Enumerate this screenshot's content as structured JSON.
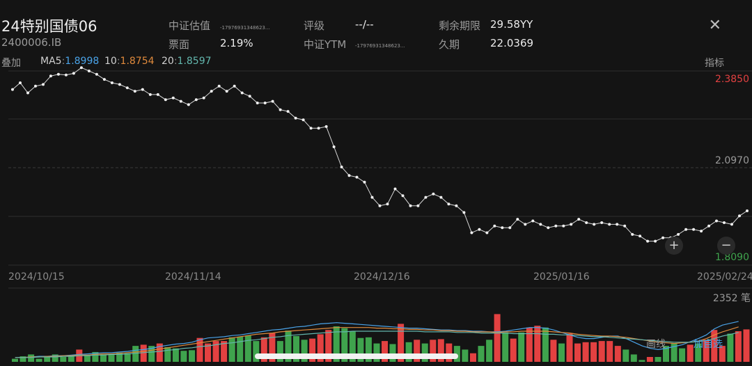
{
  "header": {
    "title": "24特别国债06",
    "code": "2400006.IB",
    "close_icon": "close-icon",
    "fields": [
      {
        "label": "中证估值",
        "value": "-17976931348623...",
        "value_style": "tiny"
      },
      {
        "label": "票面",
        "value": "2.19%"
      },
      {
        "label": "评级",
        "value": "--/--"
      },
      {
        "label": "中证YTM",
        "value": "-17976931348623...",
        "value_style": "tiny"
      },
      {
        "label": "剩余期限",
        "value": "29.58YY"
      },
      {
        "label": "久期",
        "value": "22.0369"
      }
    ]
  },
  "overlay_bar": {
    "overlay_label": "叠加",
    "ma5_label": "MA5",
    "ma5_value": "1.8998",
    "ma10_label": "10",
    "ma10_value": "1.8754",
    "ma20_label": "20",
    "ma20_value": "1.8597",
    "indicator_label": "指标"
  },
  "colors": {
    "ma5": "#4aa3e8",
    "ma10": "#e08a3c",
    "ma20": "#63b7ae",
    "up": "#e34141",
    "down": "#3fa34d",
    "price_line": "#d8d8d8"
  },
  "chart_data": {
    "type": "line",
    "y_labels": {
      "high": "2.3850",
      "mid": "2.0970",
      "low": "1.8090"
    },
    "ylim": [
      1.809,
      2.385
    ],
    "x_tick_labels": [
      "2024/10/15",
      "2024/11/14",
      "2024/12/16",
      "2025/01/16",
      "2025/02/24"
    ],
    "series": [
      {
        "values": [
          2.33,
          2.35,
          2.32,
          2.34,
          2.345,
          2.37,
          2.375,
          2.373,
          2.378,
          2.395,
          2.385,
          2.375,
          2.36,
          2.35,
          2.345,
          2.335,
          2.325,
          2.33,
          2.315,
          2.315,
          2.3,
          2.305,
          2.295,
          2.285,
          2.3,
          2.305,
          2.325,
          2.34,
          2.325,
          2.34,
          2.32,
          2.31,
          2.29,
          2.29,
          2.295,
          2.27,
          2.265,
          2.245,
          2.24,
          2.215,
          2.215,
          2.22,
          2.16,
          2.1,
          2.075,
          2.07,
          2.055,
          2.01,
          1.985,
          1.99,
          2.035,
          2.015,
          1.985,
          1.985,
          2.01,
          2.02,
          2.01,
          1.99,
          1.985,
          1.965,
          1.905,
          1.915,
          1.905,
          1.925,
          1.92,
          1.92,
          1.945,
          1.93,
          1.94,
          1.93,
          1.92,
          1.925,
          1.925,
          1.93,
          1.945,
          1.935,
          1.93,
          1.935,
          1.93,
          1.93,
          1.925,
          1.9,
          1.895,
          1.88,
          1.88,
          1.89,
          1.89,
          1.9,
          1.915,
          1.915,
          1.91,
          1.925,
          1.94,
          1.935,
          1.93,
          1.955,
          1.97
        ]
      }
    ],
    "volume": {
      "max_label": "2352 笔",
      "bars": [
        {
          "v": 0.05,
          "c": "down"
        },
        {
          "v": 0.09,
          "c": "down"
        },
        {
          "v": 0.12,
          "c": "down"
        },
        {
          "v": 0.05,
          "c": "down"
        },
        {
          "v": 0.09,
          "c": "down"
        },
        {
          "v": 0.12,
          "c": "down"
        },
        {
          "v": 0.08,
          "c": "down"
        },
        {
          "v": 0.1,
          "c": "down"
        },
        {
          "v": 0.2,
          "c": "up"
        },
        {
          "v": 0.11,
          "c": "down"
        },
        {
          "v": 0.16,
          "c": "down"
        },
        {
          "v": 0.12,
          "c": "down"
        },
        {
          "v": 0.12,
          "c": "down"
        },
        {
          "v": 0.15,
          "c": "down"
        },
        {
          "v": 0.14,
          "c": "down"
        },
        {
          "v": 0.26,
          "c": "down"
        },
        {
          "v": 0.28,
          "c": "up"
        },
        {
          "v": 0.26,
          "c": "down"
        },
        {
          "v": 0.3,
          "c": "up"
        },
        {
          "v": 0.24,
          "c": "down"
        },
        {
          "v": 0.22,
          "c": "down"
        },
        {
          "v": 0.18,
          "c": "down"
        },
        {
          "v": 0.19,
          "c": "down"
        },
        {
          "v": 0.39,
          "c": "up"
        },
        {
          "v": 0.3,
          "c": "up"
        },
        {
          "v": 0.34,
          "c": "up"
        },
        {
          "v": 0.34,
          "c": "up"
        },
        {
          "v": 0.4,
          "c": "down"
        },
        {
          "v": 0.41,
          "c": "down"
        },
        {
          "v": 0.43,
          "c": "down"
        },
        {
          "v": 0.34,
          "c": "down"
        },
        {
          "v": 0.4,
          "c": "up"
        },
        {
          "v": 0.47,
          "c": "up"
        },
        {
          "v": 0.34,
          "c": "down"
        },
        {
          "v": 0.51,
          "c": "down"
        },
        {
          "v": 0.42,
          "c": "down"
        },
        {
          "v": 0.36,
          "c": "down"
        },
        {
          "v": 0.38,
          "c": "up"
        },
        {
          "v": 0.45,
          "c": "up"
        },
        {
          "v": 0.52,
          "c": "up"
        },
        {
          "v": 0.58,
          "c": "down"
        },
        {
          "v": 0.55,
          "c": "down"
        },
        {
          "v": 0.5,
          "c": "down"
        },
        {
          "v": 0.39,
          "c": "down"
        },
        {
          "v": 0.4,
          "c": "down"
        },
        {
          "v": 0.3,
          "c": "down"
        },
        {
          "v": 0.34,
          "c": "up"
        },
        {
          "v": 0.29,
          "c": "down"
        },
        {
          "v": 0.62,
          "c": "up"
        },
        {
          "v": 0.32,
          "c": "down"
        },
        {
          "v": 0.36,
          "c": "up"
        },
        {
          "v": 0.3,
          "c": "down"
        },
        {
          "v": 0.36,
          "c": "up"
        },
        {
          "v": 0.37,
          "c": "up"
        },
        {
          "v": 0.3,
          "c": "up"
        },
        {
          "v": 0.26,
          "c": "down"
        },
        {
          "v": 0.2,
          "c": "down"
        },
        {
          "v": 0.14,
          "c": "up"
        },
        {
          "v": 0.26,
          "c": "down"
        },
        {
          "v": 0.36,
          "c": "down"
        },
        {
          "v": 0.78,
          "c": "up"
        },
        {
          "v": 0.48,
          "c": "down"
        },
        {
          "v": 0.38,
          "c": "up"
        },
        {
          "v": 0.48,
          "c": "down"
        },
        {
          "v": 0.56,
          "c": "up"
        },
        {
          "v": 0.59,
          "c": "up"
        },
        {
          "v": 0.56,
          "c": "down"
        },
        {
          "v": 0.36,
          "c": "up"
        },
        {
          "v": 0.3,
          "c": "down"
        },
        {
          "v": 0.46,
          "c": "up"
        },
        {
          "v": 0.3,
          "c": "up"
        },
        {
          "v": 0.32,
          "c": "up"
        },
        {
          "v": 0.32,
          "c": "up"
        },
        {
          "v": 0.34,
          "c": "up"
        },
        {
          "v": 0.34,
          "c": "up"
        },
        {
          "v": 0.26,
          "c": "up"
        },
        {
          "v": 0.2,
          "c": "down"
        },
        {
          "v": 0.12,
          "c": "down"
        },
        {
          "v": 0.03,
          "c": "down"
        },
        {
          "v": 0.08,
          "c": "up"
        },
        {
          "v": 0.08,
          "c": "down"
        },
        {
          "v": 0.26,
          "c": "down"
        },
        {
          "v": 0.3,
          "c": "down"
        },
        {
          "v": 0.22,
          "c": "down"
        },
        {
          "v": 0.28,
          "c": "up"
        },
        {
          "v": 0.3,
          "c": "down"
        },
        {
          "v": 0.36,
          "c": "up"
        },
        {
          "v": 0.52,
          "c": "up"
        },
        {
          "v": 0.26,
          "c": "up"
        },
        {
          "v": 0.46,
          "c": "down"
        },
        {
          "v": 0.5,
          "c": "up"
        },
        {
          "v": 0.53,
          "c": "up"
        }
      ],
      "ma5": [
        0.07,
        0.07,
        0.08,
        0.09,
        0.09,
        0.1,
        0.1,
        0.11,
        0.12,
        0.13,
        0.14,
        0.15,
        0.15,
        0.16,
        0.17,
        0.19,
        0.2,
        0.22,
        0.25,
        0.27,
        0.29,
        0.3,
        0.32,
        0.36,
        0.39,
        0.4,
        0.41,
        0.43,
        0.44,
        0.46,
        0.48,
        0.5,
        0.52,
        0.53,
        0.55,
        0.57,
        0.58,
        0.6,
        0.62,
        0.63,
        0.64,
        0.63,
        0.62,
        0.61,
        0.6,
        0.59,
        0.58,
        0.57,
        0.56,
        0.55,
        0.55,
        0.54,
        0.53,
        0.52,
        0.52,
        0.51,
        0.51,
        0.5,
        0.5,
        0.49,
        0.49,
        0.5,
        0.52,
        0.54,
        0.56,
        0.56,
        0.55,
        0.52,
        0.48,
        0.44,
        0.4,
        0.38,
        0.38,
        0.4,
        0.42,
        0.42,
        0.38,
        0.32,
        0.26,
        0.22,
        0.2,
        0.22,
        0.25,
        0.28,
        0.33,
        0.38,
        0.44,
        0.54,
        0.6,
        0.63,
        0.66
      ],
      "ma10": [
        0.07,
        0.07,
        0.08,
        0.08,
        0.09,
        0.09,
        0.1,
        0.1,
        0.11,
        0.11,
        0.12,
        0.13,
        0.13,
        0.14,
        0.15,
        0.16,
        0.17,
        0.19,
        0.21,
        0.23,
        0.25,
        0.27,
        0.29,
        0.31,
        0.33,
        0.35,
        0.37,
        0.39,
        0.41,
        0.43,
        0.45,
        0.46,
        0.47,
        0.49,
        0.5,
        0.51,
        0.52,
        0.53,
        0.54,
        0.55,
        0.56,
        0.56,
        0.56,
        0.56,
        0.56,
        0.55,
        0.55,
        0.54,
        0.54,
        0.53,
        0.53,
        0.52,
        0.52,
        0.51,
        0.51,
        0.5,
        0.5,
        0.49,
        0.49,
        0.49,
        0.48,
        0.49,
        0.49,
        0.5,
        0.5,
        0.5,
        0.5,
        0.49,
        0.48,
        0.47,
        0.45,
        0.44,
        0.43,
        0.42,
        0.42,
        0.41,
        0.4,
        0.38,
        0.36,
        0.34,
        0.32,
        0.31,
        0.3,
        0.31,
        0.32,
        0.34,
        0.38,
        0.44,
        0.49,
        0.53,
        0.57
      ],
      "ma20": [
        0.07,
        0.07,
        0.07,
        0.08,
        0.08,
        0.08,
        0.09,
        0.09,
        0.1,
        0.1,
        0.11,
        0.11,
        0.12,
        0.12,
        0.13,
        0.14,
        0.15,
        0.16,
        0.17,
        0.19,
        0.2,
        0.22,
        0.23,
        0.25,
        0.26,
        0.28,
        0.3,
        0.31,
        0.33,
        0.35,
        0.36,
        0.38,
        0.4,
        0.41,
        0.43,
        0.44,
        0.45,
        0.46,
        0.47,
        0.48,
        0.49,
        0.49,
        0.5,
        0.5,
        0.5,
        0.5,
        0.5,
        0.5,
        0.5,
        0.5,
        0.5,
        0.49,
        0.49,
        0.49,
        0.49,
        0.48,
        0.48,
        0.48,
        0.47,
        0.47,
        0.47,
        0.47,
        0.46,
        0.46,
        0.46,
        0.46,
        0.45,
        0.45,
        0.44,
        0.44,
        0.43,
        0.42,
        0.41,
        0.41,
        0.4,
        0.39,
        0.38,
        0.37,
        0.36,
        0.35,
        0.34,
        0.33,
        0.32,
        0.32,
        0.32,
        0.33,
        0.35,
        0.38,
        0.42,
        0.45,
        0.48
      ]
    }
  },
  "bottom_bar": {
    "draw_label": "画线",
    "add_label": "加自选"
  }
}
